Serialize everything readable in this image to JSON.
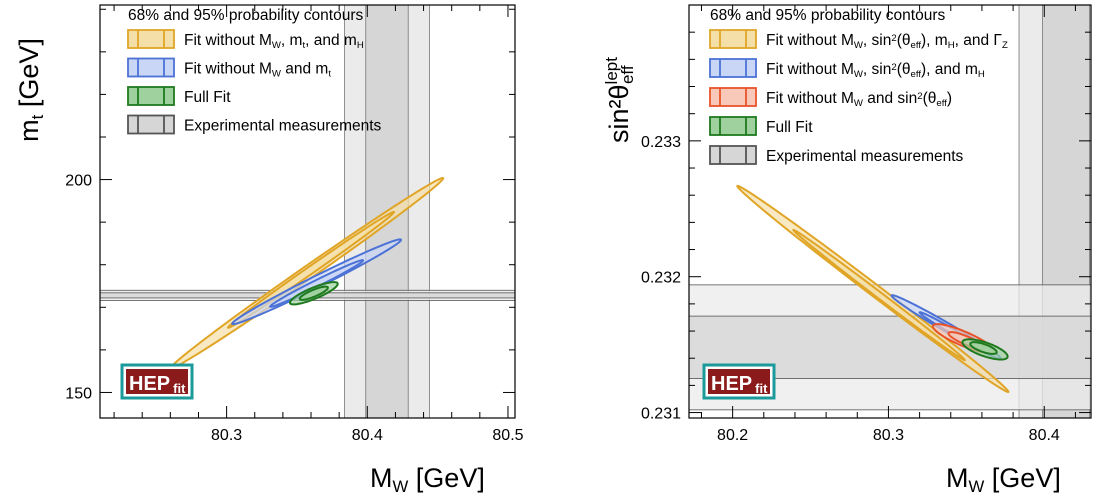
{
  "colors": {
    "yellow_fill": "#f5dfa8",
    "yellow_line": "#e0a526",
    "blue_fill": "#c9d6f5",
    "blue_line": "#4c72d6",
    "red_fill": "#f8c9b8",
    "red_line": "#e8532a",
    "green_fill": "#9fd19f",
    "green_line": "#1e7a1e",
    "band_light": "#ebebeb",
    "band_dark": "#d6d6d6",
    "logo_red": "#8b1a1a",
    "logo_border": "#1a9a9a"
  },
  "logo": {
    "main": "HEP",
    "sub": "fit"
  },
  "chart_data": [
    {
      "type": "contour",
      "title": "",
      "xlabel": {
        "main": "M",
        "sub": "W",
        "rest": " [GeV]"
      },
      "ylabel": {
        "main": "m",
        "sub": "t",
        "rest": " [GeV]"
      },
      "xlim": [
        80.21,
        80.505
      ],
      "ylim": [
        144,
        241
      ],
      "xticks": [
        {
          "value": 80.3,
          "label": "80.3"
        },
        {
          "value": 80.4,
          "label": "80.4"
        },
        {
          "value": 80.5,
          "label": "80.5"
        }
      ],
      "yticks": [
        {
          "value": 150,
          "label": "150"
        },
        {
          "value": 200,
          "label": "200"
        }
      ],
      "legend_header": "68% and 95% probability contours",
      "legend_position": "top-left",
      "legend": [
        {
          "style": "yellow",
          "parts": [
            [
              "t",
              "Fit without M"
            ],
            [
              "sub",
              "W"
            ],
            [
              "t",
              ", m"
            ],
            [
              "sub",
              "t"
            ],
            [
              "t",
              ", and m"
            ],
            [
              "sub",
              "H"
            ]
          ]
        },
        {
          "style": "blue",
          "parts": [
            [
              "t",
              "Fit without M"
            ],
            [
              "sub",
              "W"
            ],
            [
              "t",
              " and m"
            ],
            [
              "sub",
              "t"
            ]
          ]
        },
        {
          "style": "green",
          "parts": [
            [
              "t",
              "Full Fit"
            ]
          ]
        },
        {
          "style": "grey",
          "parts": [
            [
              "t",
              "Experimental measurements"
            ]
          ]
        }
      ],
      "vbands": {
        "inner": [
          80.3989,
          80.4291
        ],
        "outer": [
          80.3838,
          80.4442
        ]
      },
      "hbands": {
        "inner": [
          172.2,
          173.4
        ],
        "outer": [
          171.6,
          174.0
        ]
      },
      "contours": [
        {
          "style": "yellow",
          "level": "95%",
          "cx": 80.357,
          "cy": 178.0,
          "a": 0.097,
          "b": 0.0056,
          "slope": 230.0
        },
        {
          "style": "yellow",
          "level": "68%",
          "cx": 80.36,
          "cy": 178.8,
          "a": 0.059,
          "b": 0.0032,
          "slope": 230.0
        },
        {
          "style": "blue",
          "level": "95%",
          "cx": 80.364,
          "cy": 176.0,
          "a": 0.06,
          "b": 0.0046,
          "slope": 164.0
        },
        {
          "style": "blue",
          "level": "68%",
          "cx": 80.364,
          "cy": 175.6,
          "a": 0.033,
          "b": 0.0026,
          "slope": 164.0
        },
        {
          "style": "green",
          "level": "95%",
          "cx": 80.362,
          "cy": 173.3,
          "a": 0.017,
          "b": 0.0043,
          "slope": 130.0
        },
        {
          "style": "green",
          "level": "68%",
          "cx": 80.362,
          "cy": 173.3,
          "a": 0.01,
          "b": 0.0026,
          "slope": 130.0
        }
      ]
    },
    {
      "type": "contour",
      "title": "",
      "xlabel": {
        "main": "M",
        "sub": "W",
        "rest": " [GeV]"
      },
      "ylabel": {
        "main": "sin²θ",
        "sup": "lept",
        "sub": "eff"
      },
      "xlim": [
        80.172,
        80.43
      ],
      "ylim": [
        0.23096,
        0.234
      ],
      "xticks": [
        {
          "value": 80.2,
          "label": "80.2"
        },
        {
          "value": 80.3,
          "label": "80.3"
        },
        {
          "value": 80.4,
          "label": "80.4"
        }
      ],
      "yticks": [
        {
          "value": 0.231,
          "label": "0.231"
        },
        {
          "value": 0.232,
          "label": "0.232"
        },
        {
          "value": 0.233,
          "label": "0.233"
        }
      ],
      "legend_header": "68% and 95% probability contours",
      "legend_position": "top-left",
      "legend": [
        {
          "style": "yellow",
          "parts": [
            [
              "t",
              "Fit without M"
            ],
            [
              "sub",
              "W"
            ],
            [
              "t",
              ", sin"
            ],
            [
              "sup",
              "2"
            ],
            [
              "t",
              "(θ"
            ],
            [
              "sub",
              "eff"
            ],
            [
              "t",
              "), m"
            ],
            [
              "sub",
              "H"
            ],
            [
              "t",
              ", and Γ"
            ],
            [
              "sub",
              "Z"
            ]
          ]
        },
        {
          "style": "blue",
          "parts": [
            [
              "t",
              "Fit without M"
            ],
            [
              "sub",
              "W"
            ],
            [
              "t",
              ", sin"
            ],
            [
              "sup",
              "2"
            ],
            [
              "t",
              "(θ"
            ],
            [
              "sub",
              "eff"
            ],
            [
              "t",
              "), and m"
            ],
            [
              "sub",
              "H"
            ]
          ]
        },
        {
          "style": "red",
          "parts": [
            [
              "t",
              "Fit without M"
            ],
            [
              "sub",
              "W"
            ],
            [
              "t",
              " and sin"
            ],
            [
              "sup",
              "2"
            ],
            [
              "t",
              "(θ"
            ],
            [
              "sub",
              "eff"
            ],
            [
              "t",
              ")"
            ]
          ]
        },
        {
          "style": "green",
          "parts": [
            [
              "t",
              "Full Fit"
            ]
          ]
        },
        {
          "style": "grey",
          "parts": [
            [
              "t",
              "Experimental measurements"
            ]
          ]
        }
      ],
      "vbands": {
        "inner": [
          80.3989,
          80.4291
        ],
        "outer": [
          80.3838,
          80.4442
        ]
      },
      "hbands": {
        "inner": [
          0.23125,
          0.23171
        ],
        "outer": [
          0.23102,
          0.23194
        ]
      },
      "contours": [
        {
          "style": "yellow",
          "level": "95%",
          "cx": 80.29,
          "cy": 0.23191,
          "a": 0.087,
          "b": 0.0045,
          "slope": -0.0087
        },
        {
          "style": "yellow",
          "level": "68%",
          "cx": 80.294,
          "cy": 0.231865,
          "a": 0.055,
          "b": 0.0024,
          "slope": -0.0087
        },
        {
          "style": "blue",
          "level": "95%",
          "cx": 80.337,
          "cy": 0.23163,
          "a": 0.035,
          "b": 0.0032,
          "slope": -0.0066
        },
        {
          "style": "blue",
          "level": "68%",
          "cx": 80.34,
          "cy": 0.231605,
          "a": 0.02,
          "b": 0.0018,
          "slope": -0.0066
        },
        {
          "style": "red",
          "level": "95%",
          "cx": 80.348,
          "cy": 0.231545,
          "a": 0.0195,
          "b": 0.0048,
          "slope": -0.0046
        },
        {
          "style": "red",
          "level": "68%",
          "cx": 80.35,
          "cy": 0.23153,
          "a": 0.0115,
          "b": 0.0028,
          "slope": -0.0046
        },
        {
          "style": "green",
          "level": "95%",
          "cx": 80.362,
          "cy": 0.231465,
          "a": 0.0145,
          "b": 0.0045,
          "slope": -0.0036
        },
        {
          "style": "green",
          "level": "68%",
          "cx": 80.361,
          "cy": 0.231475,
          "a": 0.0085,
          "b": 0.0026,
          "slope": -0.0036
        }
      ]
    }
  ]
}
